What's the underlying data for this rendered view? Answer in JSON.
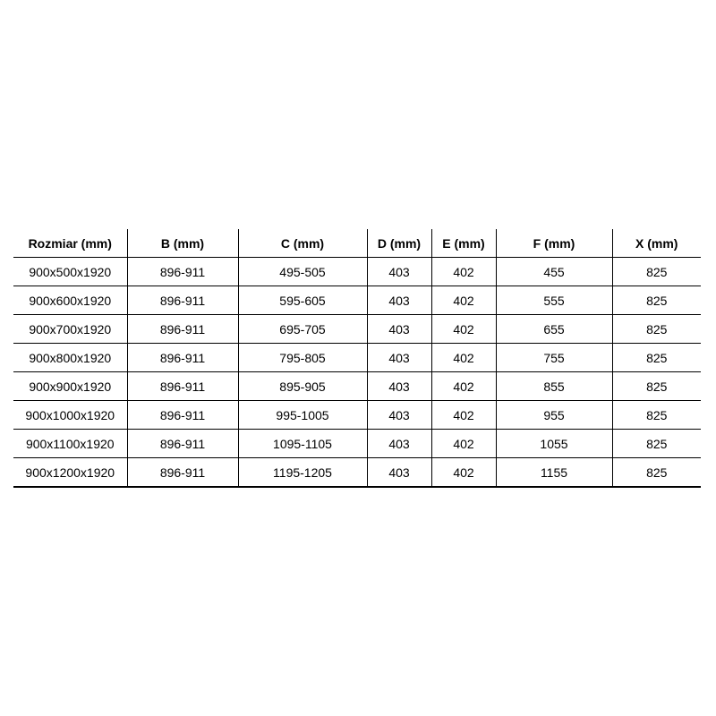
{
  "table": {
    "headers": [
      "Rozmiar (mm)",
      "B (mm)",
      "C (mm)",
      "D (mm)",
      "E (mm)",
      "F (mm)",
      "X (mm)"
    ],
    "rows": [
      [
        "900x500x1920",
        "896-911",
        "495-505",
        "403",
        "402",
        "455",
        "825"
      ],
      [
        "900x600x1920",
        "896-911",
        "595-605",
        "403",
        "402",
        "555",
        "825"
      ],
      [
        "900x700x1920",
        "896-911",
        "695-705",
        "403",
        "402",
        "655",
        "825"
      ],
      [
        "900x800x1920",
        "896-911",
        "795-805",
        "403",
        "402",
        "755",
        "825"
      ],
      [
        "900x900x1920",
        "896-911",
        "895-905",
        "403",
        "402",
        "855",
        "825"
      ],
      [
        "900x1000x1920",
        "896-911",
        "995-1005",
        "403",
        "402",
        "955",
        "825"
      ],
      [
        "900x1100x1920",
        "896-911",
        "1095-1105",
        "403",
        "402",
        "1055",
        "825"
      ],
      [
        "900x1200x1920",
        "896-911",
        "1195-1205",
        "403",
        "402",
        "1155",
        "825"
      ]
    ]
  }
}
